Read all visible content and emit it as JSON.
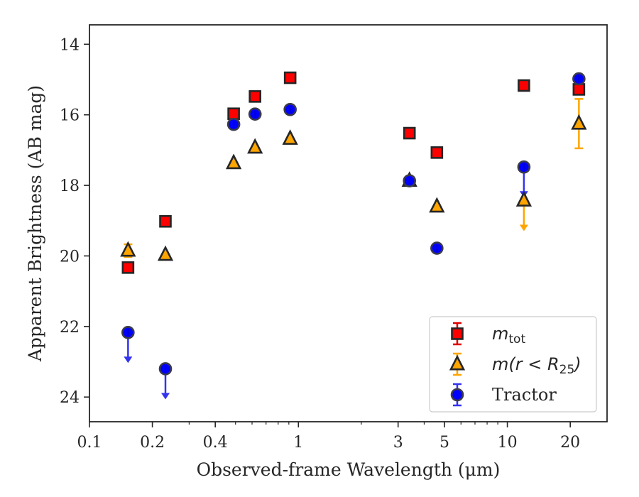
{
  "chart_data": {
    "type": "scatter",
    "title": "",
    "xlabel": "Observed-frame Wavelength (μm)",
    "ylabel": "Apparent Brightness (AB mag)",
    "x_scale": "log",
    "xlim": [
      0.1,
      30
    ],
    "ylim": [
      24.7,
      13.45
    ],
    "y_inverted": true,
    "x_ticks": [
      {
        "value": 0.1,
        "label": "0.1"
      },
      {
        "value": 0.2,
        "label": "0.2"
      },
      {
        "value": 0.4,
        "label": "0.4"
      },
      {
        "value": 1,
        "label": "1"
      },
      {
        "value": 3,
        "label": "3"
      },
      {
        "value": 5,
        "label": "5"
      },
      {
        "value": 10,
        "label": "10"
      },
      {
        "value": 20,
        "label": "20"
      }
    ],
    "y_ticks": [
      {
        "value": 14,
        "label": "14"
      },
      {
        "value": 16,
        "label": "16"
      },
      {
        "value": 18,
        "label": "18"
      },
      {
        "value": 20,
        "label": "20"
      },
      {
        "value": 22,
        "label": "22"
      },
      {
        "value": 24,
        "label": "24"
      }
    ],
    "legend_position": "lower-right",
    "series": [
      {
        "name": "m_tot",
        "legend_main": "m",
        "legend_sub": "tot",
        "marker": "square",
        "color": "#ff0000",
        "points": [
          {
            "x": 0.153,
            "y": 20.33
          },
          {
            "x": 0.231,
            "y": 19.02
          },
          {
            "x": 0.49,
            "y": 15.97
          },
          {
            "x": 0.62,
            "y": 15.48
          },
          {
            "x": 0.913,
            "y": 14.95
          },
          {
            "x": 3.4,
            "y": 16.52
          },
          {
            "x": 4.6,
            "y": 17.07
          },
          {
            "x": 12.0,
            "y": 15.17
          },
          {
            "x": 22.0,
            "y": 15.28
          }
        ]
      },
      {
        "name": "m(r < R25)",
        "legend_main": "m(r < R",
        "legend_sub": "25",
        "legend_close": ")",
        "marker": "triangle",
        "color": "#ffa500",
        "points": [
          {
            "x": 0.153,
            "y": 19.85,
            "yerr": 0.18
          },
          {
            "x": 0.231,
            "y": 19.97
          },
          {
            "x": 0.49,
            "y": 17.37
          },
          {
            "x": 0.62,
            "y": 16.93
          },
          {
            "x": 0.913,
            "y": 16.68
          },
          {
            "x": 3.4,
            "y": 17.87
          },
          {
            "x": 4.6,
            "y": 18.6
          },
          {
            "x": 12.0,
            "y": 18.43,
            "upper_limit": true
          },
          {
            "x": 22.0,
            "y": 16.25,
            "yerr": 0.7
          }
        ]
      },
      {
        "name": "Tractor",
        "legend_main": "Tractor",
        "marker": "circle",
        "color": "#0000ff",
        "points": [
          {
            "x": 0.153,
            "y": 22.17,
            "upper_limit": true
          },
          {
            "x": 0.231,
            "y": 23.2,
            "upper_limit": true
          },
          {
            "x": 0.49,
            "y": 16.27
          },
          {
            "x": 0.62,
            "y": 15.98
          },
          {
            "x": 0.913,
            "y": 15.85
          },
          {
            "x": 3.4,
            "y": 17.87
          },
          {
            "x": 4.6,
            "y": 19.78
          },
          {
            "x": 12.0,
            "y": 17.48,
            "upper_limit": true
          },
          {
            "x": 22.0,
            "y": 14.98
          }
        ]
      }
    ]
  }
}
